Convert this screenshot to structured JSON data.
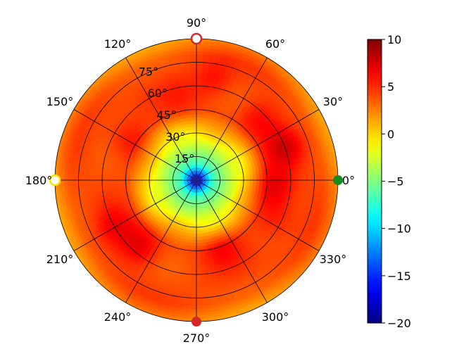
{
  "chart_data": {
    "type": "heatmap",
    "projection": "polar",
    "title": "",
    "xlabel": "",
    "ylabel": "",
    "angle_ticks": [
      "0°",
      "30°",
      "60°",
      "90°",
      "120°",
      "150°",
      "180°",
      "210°",
      "240°",
      "270°",
      "300°",
      "330°"
    ],
    "angle_tick_values": [
      0,
      30,
      60,
      90,
      120,
      150,
      180,
      210,
      240,
      270,
      300,
      330
    ],
    "radial_ticks": [
      "15°",
      "30°",
      "45°",
      "60°",
      "75°"
    ],
    "radial_tick_values": [
      15,
      30,
      45,
      60,
      75
    ],
    "r_range": [
      0,
      90
    ],
    "grid": true,
    "colormap": "jet",
    "colorbar": {
      "ticks": [
        "10",
        "5",
        "0",
        "−5",
        "−10",
        "−15",
        "−20"
      ],
      "tick_values": [
        10,
        5,
        0,
        -5,
        -10,
        -15,
        -20
      ],
      "range": [
        -20,
        10
      ]
    },
    "value_field": {
      "center_value": -19,
      "inner_ring": {
        "r": 10,
        "value": -7
      },
      "mid_ring": {
        "r": 25,
        "value": -2
      },
      "outer_value": 4,
      "edge_value": 2,
      "hotspots": [
        {
          "az": 20,
          "el_r": 60,
          "value": 7
        },
        {
          "az": 45,
          "el_r": 55,
          "value": 6
        },
        {
          "az": 80,
          "el_r": 65,
          "value": 6
        },
        {
          "az": 100,
          "el_r": 55,
          "value": 5
        },
        {
          "az": 150,
          "el_r": 50,
          "value": 6
        },
        {
          "az": 355,
          "el_r": 50,
          "value": 7
        },
        {
          "az": 335,
          "el_r": 55,
          "value": 6
        },
        {
          "az": 290,
          "el_r": 45,
          "value": 6
        },
        {
          "az": 230,
          "el_r": 55,
          "value": 7
        },
        {
          "az": 210,
          "el_r": 60,
          "value": 6
        }
      ]
    },
    "markers": [
      {
        "az": 0,
        "r": 90,
        "color": "#1a8c1a",
        "fill": "filled"
      },
      {
        "az": 90,
        "r": 90,
        "color": "#d62728",
        "fill": "hollow"
      },
      {
        "az": 180,
        "r": 90,
        "color": "#f2e600",
        "fill": "hollow"
      },
      {
        "az": 270,
        "r": 90,
        "color": "#d62728",
        "fill": "filled"
      },
      {
        "az": 0,
        "r": 0,
        "color": "#1f1f8f",
        "fill": "filled"
      }
    ]
  }
}
